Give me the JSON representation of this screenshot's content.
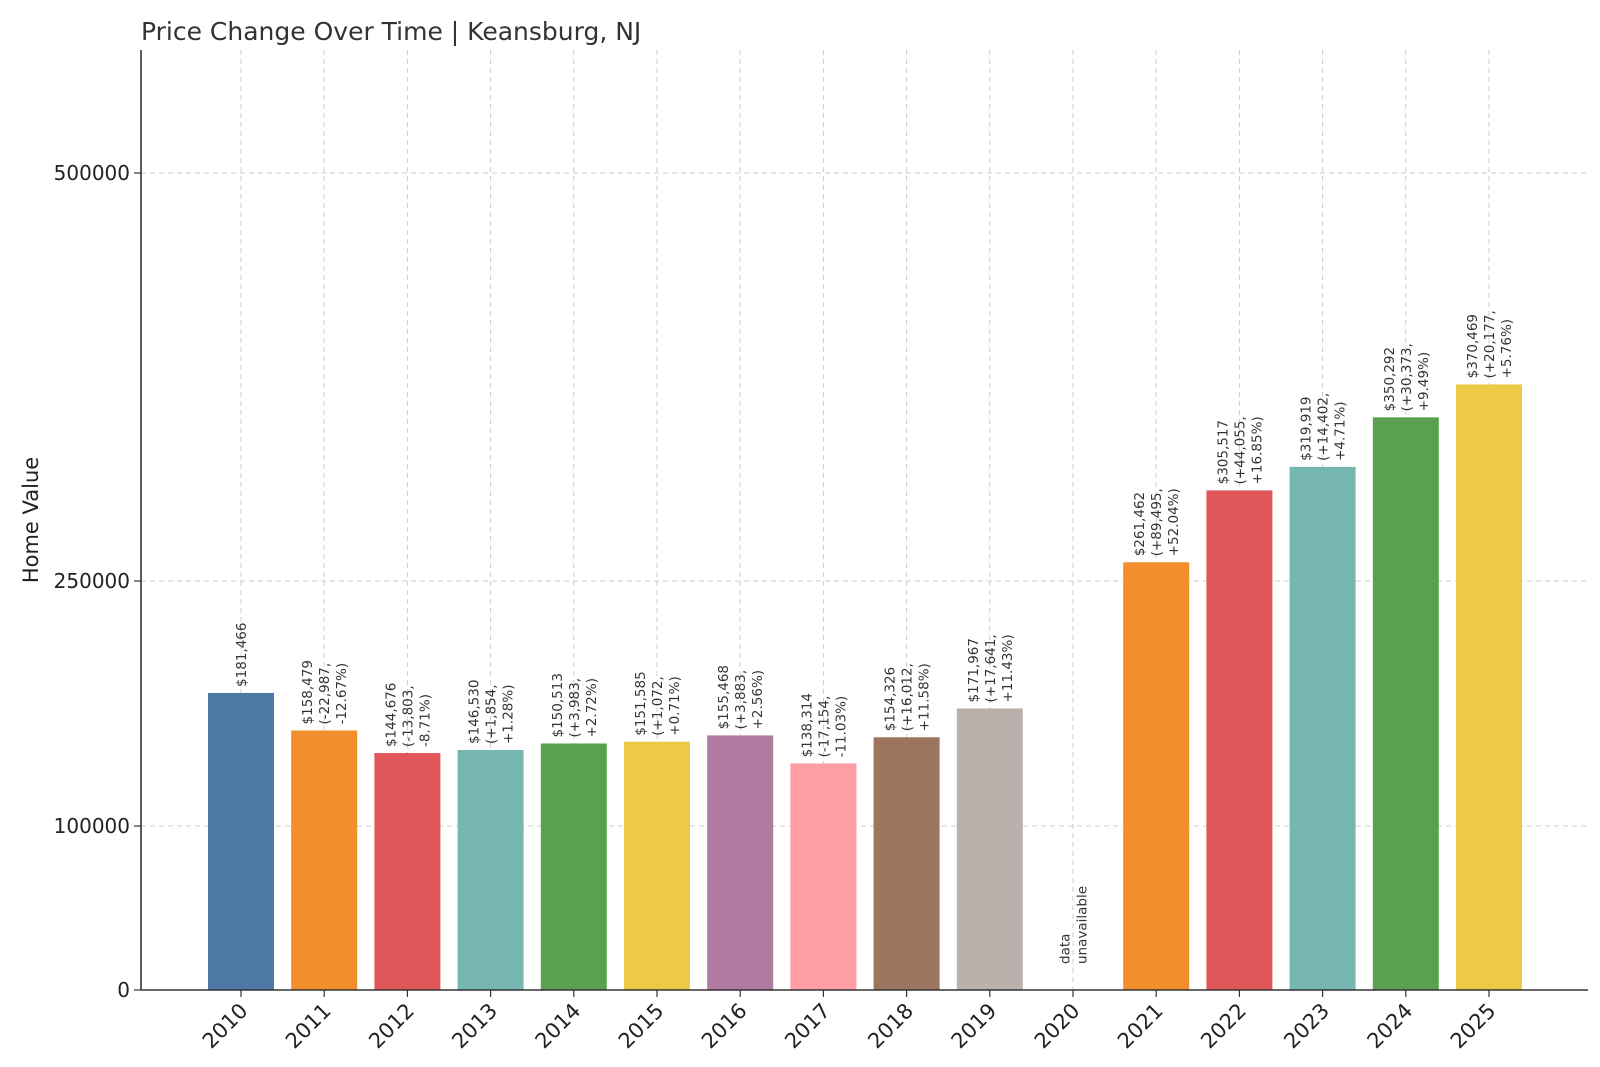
{
  "chart_data": {
    "type": "bar",
    "title": "Price Change Over Time | Keansburg, NJ",
    "ylabel": "Home Value",
    "xlabel": "",
    "ylim": [
      0,
      575000
    ],
    "yticks": [
      0,
      100000,
      250000,
      500000
    ],
    "ytick_labels": [
      "0",
      "100000",
      "250000",
      "500000"
    ],
    "y_scale": "piecewise",
    "grid": true,
    "categories": [
      "2010",
      "2011",
      "2012",
      "2013",
      "2014",
      "2015",
      "2016",
      "2017",
      "2018",
      "2019",
      "2020",
      "2021",
      "2022",
      "2023",
      "2024",
      "2025"
    ],
    "values": [
      181466,
      158479,
      144676,
      146530,
      150513,
      151585,
      155468,
      138314,
      154326,
      171967,
      null,
      261462,
      305517,
      319919,
      350292,
      370469
    ],
    "bar_labels": [
      [
        "$181,466"
      ],
      [
        "$158,479",
        "(-22,987,",
        "-12.67%)"
      ],
      [
        "$144,676",
        "(-13,803,",
        "-8.71%)"
      ],
      [
        "$146,530",
        "(+1,854,",
        "+1.28%)"
      ],
      [
        "$150,513",
        "(+3,983,",
        "+2.72%)"
      ],
      [
        "$151,585",
        "(+1,072,",
        "+0.71%)"
      ],
      [
        "$155,468",
        "(+3,883,",
        "+2.56%)"
      ],
      [
        "$138,314",
        "(-17,154,",
        "-11.03%)"
      ],
      [
        "$154,326",
        "(+16,012,",
        "+11.58%)"
      ],
      [
        "$171,967",
        "(+17,641,",
        "+11.43%)"
      ],
      [
        "data",
        "unavailable"
      ],
      [
        "$261,462",
        "(+89,495,",
        "+52.04%)"
      ],
      [
        "$305,517",
        "(+44,055,",
        "+16.85%)"
      ],
      [
        "$319,919",
        "(+14,402,",
        "+4.71%)"
      ],
      [
        "$350,292",
        "(+30,373,",
        "+9.49%)"
      ],
      [
        "$370,469",
        "(+20,177,",
        "+5.76%)"
      ]
    ],
    "colors": [
      "#4e79a7",
      "#f28e2b",
      "#e15759",
      "#76b7b2",
      "#59a14f",
      "#edc948",
      "#b07aa1",
      "#ff9da7",
      "#9c755f",
      "#bab0ac",
      "#4e79a7",
      "#f28e2b",
      "#e15759",
      "#76b7b2",
      "#59a14f",
      "#edc948"
    ]
  }
}
